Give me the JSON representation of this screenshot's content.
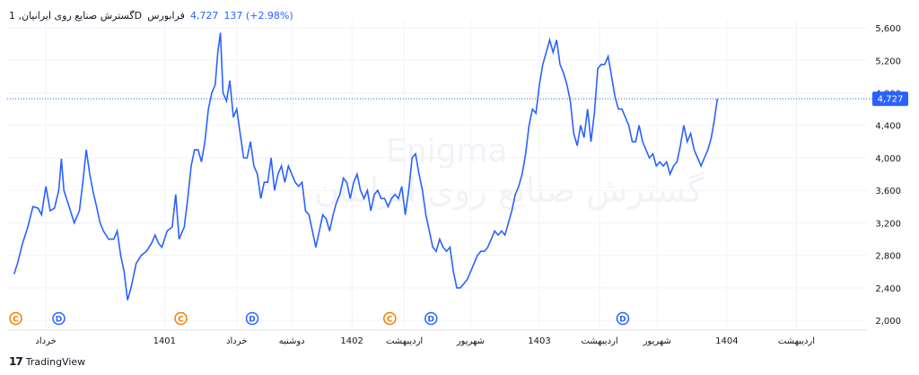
{
  "header": {
    "symbol": "گسترش صنایع روی ایرانیان, 1D",
    "exchange": "فرابورس",
    "last": "4,727",
    "change": "137 (+2.98%)"
  },
  "watermark": {
    "line1": "Enigma",
    "line2": "گسترش صنایع روی ایرانیان"
  },
  "footer": {
    "brand": "TradingView",
    "logo": "17"
  },
  "price_tag": "4,727",
  "colors": {
    "line": "#2962ff",
    "divCircle": "#2962ff",
    "corpCircle": "#f57c00",
    "grid": "#f0f3fa"
  },
  "chart_data": {
    "type": "line",
    "y_ticks": [
      "2,000",
      "2,400",
      "2,800",
      "3,200",
      "3,600",
      "4,000",
      "4,400",
      "4,800",
      "5,200",
      "5,600"
    ],
    "y_tick_values": [
      2000,
      2400,
      2800,
      3200,
      3600,
      4000,
      4400,
      4800,
      5200,
      5600
    ],
    "ylim": [
      1880,
      5700
    ],
    "x_range": [
      0,
      1000
    ],
    "x_ticks": [
      {
        "x": 45,
        "label": "خرداد"
      },
      {
        "x": 183,
        "label": "1401"
      },
      {
        "x": 267,
        "label": "خرداد"
      },
      {
        "x": 331,
        "label": "دوشنبه"
      },
      {
        "x": 401,
        "label": "1402"
      },
      {
        "x": 462,
        "label": "اردیبهشت"
      },
      {
        "x": 539,
        "label": "شهریور"
      },
      {
        "x": 619,
        "label": "1403"
      },
      {
        "x": 689,
        "label": "اردیبهشت"
      },
      {
        "x": 756,
        "label": "شهریور"
      },
      {
        "x": 837,
        "label": "1404"
      },
      {
        "x": 918,
        "label": "اردیبهشت"
      }
    ],
    "events": [
      {
        "x": 10,
        "kind": "C"
      },
      {
        "x": 60,
        "kind": "D"
      },
      {
        "x": 202,
        "kind": "C"
      },
      {
        "x": 285,
        "kind": "D"
      },
      {
        "x": 445,
        "kind": "C"
      },
      {
        "x": 493,
        "kind": "D"
      },
      {
        "x": 716,
        "kind": "D"
      }
    ],
    "last_value": 4727,
    "series": [
      {
        "points": [
          [
            8,
            2570
          ],
          [
            12,
            2700
          ],
          [
            18,
            2950
          ],
          [
            24,
            3150
          ],
          [
            30,
            3400
          ],
          [
            36,
            3380
          ],
          [
            40,
            3300
          ],
          [
            45,
            3650
          ],
          [
            50,
            3350
          ],
          [
            55,
            3380
          ],
          [
            60,
            3600
          ],
          [
            63,
            3990
          ],
          [
            66,
            3600
          ],
          [
            72,
            3400
          ],
          [
            78,
            3200
          ],
          [
            84,
            3350
          ],
          [
            88,
            3700
          ],
          [
            92,
            4100
          ],
          [
            96,
            3800
          ],
          [
            100,
            3580
          ],
          [
            104,
            3400
          ],
          [
            108,
            3200
          ],
          [
            112,
            3100
          ],
          [
            118,
            3000
          ],
          [
            124,
            3000
          ],
          [
            128,
            3100
          ],
          [
            132,
            2800
          ],
          [
            136,
            2600
          ],
          [
            140,
            2250
          ],
          [
            144,
            2400
          ],
          [
            150,
            2700
          ],
          [
            156,
            2800
          ],
          [
            162,
            2850
          ],
          [
            168,
            2950
          ],
          [
            172,
            3050
          ],
          [
            176,
            2950
          ],
          [
            180,
            2900
          ],
          [
            186,
            3100
          ],
          [
            192,
            3150
          ],
          [
            196,
            3550
          ],
          [
            200,
            3000
          ],
          [
            206,
            3150
          ],
          [
            210,
            3500
          ],
          [
            214,
            3900
          ],
          [
            218,
            4100
          ],
          [
            222,
            4100
          ],
          [
            226,
            3950
          ],
          [
            230,
            4200
          ],
          [
            234,
            4600
          ],
          [
            238,
            4800
          ],
          [
            242,
            4900
          ],
          [
            245,
            5300
          ],
          [
            248,
            5540
          ],
          [
            251,
            4800
          ],
          [
            255,
            4700
          ],
          [
            259,
            4950
          ],
          [
            263,
            4500
          ],
          [
            267,
            4600
          ],
          [
            271,
            4300
          ],
          [
            275,
            4000
          ],
          [
            279,
            4000
          ],
          [
            283,
            4200
          ],
          [
            287,
            3900
          ],
          [
            291,
            3800
          ],
          [
            295,
            3500
          ],
          [
            299,
            3700
          ],
          [
            303,
            3700
          ],
          [
            307,
            4000
          ],
          [
            311,
            3600
          ],
          [
            315,
            3800
          ],
          [
            319,
            3900
          ],
          [
            323,
            3700
          ],
          [
            327,
            3900
          ],
          [
            331,
            3800
          ],
          [
            335,
            3700
          ],
          [
            339,
            3650
          ],
          [
            343,
            3700
          ],
          [
            347,
            3350
          ],
          [
            351,
            3300
          ],
          [
            355,
            3100
          ],
          [
            359,
            2900
          ],
          [
            363,
            3100
          ],
          [
            367,
            3300
          ],
          [
            371,
            3250
          ],
          [
            375,
            3100
          ],
          [
            379,
            3300
          ],
          [
            383,
            3450
          ],
          [
            387,
            3550
          ],
          [
            391,
            3750
          ],
          [
            395,
            3700
          ],
          [
            399,
            3500
          ],
          [
            403,
            3700
          ],
          [
            407,
            3800
          ],
          [
            411,
            3600
          ],
          [
            415,
            3500
          ],
          [
            419,
            3600
          ],
          [
            423,
            3350
          ],
          [
            427,
            3550
          ],
          [
            431,
            3600
          ],
          [
            435,
            3500
          ],
          [
            439,
            3500
          ],
          [
            443,
            3400
          ],
          [
            447,
            3500
          ],
          [
            451,
            3550
          ],
          [
            455,
            3500
          ],
          [
            459,
            3650
          ],
          [
            463,
            3300
          ],
          [
            467,
            3600
          ],
          [
            471,
            4000
          ],
          [
            475,
            4050
          ],
          [
            479,
            3800
          ],
          [
            483,
            3600
          ],
          [
            487,
            3300
          ],
          [
            491,
            3100
          ],
          [
            495,
            2900
          ],
          [
            499,
            2850
          ],
          [
            503,
            3000
          ],
          [
            507,
            2900
          ],
          [
            511,
            2850
          ],
          [
            515,
            2900
          ],
          [
            519,
            2600
          ],
          [
            523,
            2400
          ],
          [
            527,
            2400
          ],
          [
            531,
            2450
          ],
          [
            535,
            2500
          ],
          [
            539,
            2600
          ],
          [
            543,
            2700
          ],
          [
            547,
            2800
          ],
          [
            551,
            2850
          ],
          [
            555,
            2850
          ],
          [
            559,
            2900
          ],
          [
            563,
            3000
          ],
          [
            567,
            3100
          ],
          [
            571,
            3050
          ],
          [
            575,
            3100
          ],
          [
            579,
            3050
          ],
          [
            583,
            3200
          ],
          [
            587,
            3350
          ],
          [
            591,
            3550
          ],
          [
            595,
            3650
          ],
          [
            599,
            3800
          ],
          [
            603,
            4050
          ],
          [
            607,
            4400
          ],
          [
            611,
            4600
          ],
          [
            615,
            4550
          ],
          [
            619,
            4900
          ],
          [
            623,
            5150
          ],
          [
            627,
            5300
          ],
          [
            631,
            5450
          ],
          [
            635,
            5300
          ],
          [
            639,
            5450
          ],
          [
            643,
            5150
          ],
          [
            647,
            5050
          ],
          [
            651,
            4900
          ],
          [
            655,
            4700
          ],
          [
            659,
            4300
          ],
          [
            663,
            4150
          ],
          [
            667,
            4400
          ],
          [
            671,
            4250
          ],
          [
            675,
            4600
          ],
          [
            679,
            4200
          ],
          [
            683,
            4550
          ],
          [
            687,
            5100
          ],
          [
            691,
            5150
          ],
          [
            695,
            5150
          ],
          [
            699,
            5250
          ],
          [
            703,
            5000
          ],
          [
            707,
            4750
          ],
          [
            711,
            4600
          ],
          [
            715,
            4600
          ],
          [
            719,
            4500
          ],
          [
            723,
            4400
          ],
          [
            727,
            4200
          ],
          [
            731,
            4200
          ],
          [
            735,
            4400
          ],
          [
            739,
            4200
          ],
          [
            743,
            4100
          ],
          [
            747,
            4000
          ],
          [
            751,
            4050
          ],
          [
            755,
            3900
          ],
          [
            759,
            3950
          ],
          [
            763,
            3900
          ],
          [
            767,
            3950
          ],
          [
            771,
            3800
          ],
          [
            775,
            3900
          ],
          [
            779,
            3950
          ],
          [
            783,
            4150
          ],
          [
            787,
            4400
          ],
          [
            791,
            4200
          ],
          [
            795,
            4300
          ],
          [
            799,
            4100
          ],
          [
            803,
            4000
          ],
          [
            807,
            3900
          ],
          [
            811,
            4000
          ],
          [
            815,
            4100
          ],
          [
            819,
            4250
          ],
          [
            823,
            4500
          ],
          [
            826,
            4727
          ]
        ]
      }
    ]
  }
}
